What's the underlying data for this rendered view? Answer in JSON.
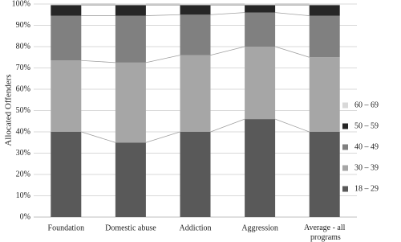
{
  "chart_data": {
    "type": "stacked_bar",
    "y_label": "Allocated Offenders",
    "categories": [
      "Foundation",
      "Domestic abuse",
      "Addiction",
      "Aggression",
      "Average - all programs"
    ],
    "series": [
      {
        "name": "18 – 29",
        "color": "#595959",
        "values": [
          40,
          35,
          40,
          46,
          40
        ]
      },
      {
        "name": "30 – 39",
        "color": "#a6a6a6",
        "values": [
          33.5,
          37.5,
          36,
          34,
          35
        ]
      },
      {
        "name": "40 – 49",
        "color": "#808080",
        "values": [
          21,
          22,
          19,
          16,
          19.5
        ]
      },
      {
        "name": "50 – 59",
        "color": "#262626",
        "values": [
          5,
          5,
          4.5,
          3.5,
          5
        ]
      },
      {
        "name": "60 – 69",
        "color": "#d9d9d9",
        "values": [
          0.5,
          0.5,
          0.5,
          0.5,
          0.5
        ]
      }
    ],
    "ylim": [
      0,
      100
    ],
    "yticks": [
      {
        "value": 0,
        "label": "0%"
      },
      {
        "value": 10,
        "label": "10%"
      },
      {
        "value": 20,
        "label": "20%"
      },
      {
        "value": 30,
        "label": "30%"
      },
      {
        "value": 40,
        "label": "40%"
      },
      {
        "value": 50,
        "label": "50%"
      },
      {
        "value": 60,
        "label": "60%"
      },
      {
        "value": 70,
        "label": "70%"
      },
      {
        "value": 80,
        "label": "80%"
      },
      {
        "value": 90,
        "label": "90%"
      },
      {
        "value": 100,
        "label": "100%"
      }
    ],
    "grid": true,
    "legend_position": "right"
  }
}
